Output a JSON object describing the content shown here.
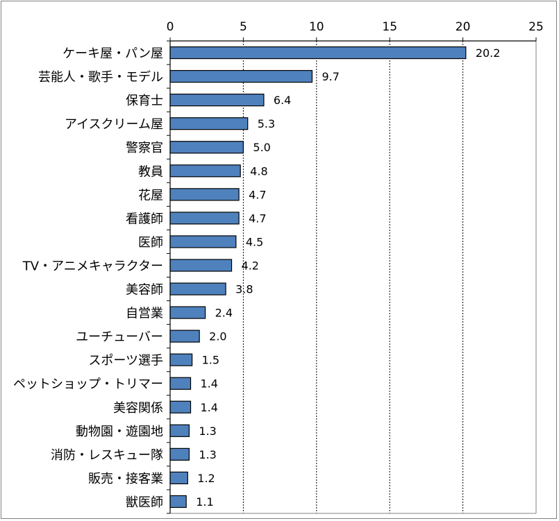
{
  "chart_data": {
    "type": "bar",
    "orientation": "horizontal",
    "categories": [
      "ケーキ屋・パン屋",
      "芸能人・歌手・モデル",
      "保育士",
      "アイスクリーム屋",
      "警察官",
      "教員",
      "花屋",
      "看護師",
      "医師",
      "TV・アニメキャラクター",
      "美容師",
      "自営業",
      "ユーチューバー",
      "スポーツ選手",
      "ペットショップ・トリマー",
      "美容関係",
      "動物園・遊園地",
      "消防・レスキュー隊",
      "販売・接客業",
      "獣医師"
    ],
    "values": [
      20.2,
      9.7,
      6.4,
      5.3,
      5.0,
      4.8,
      4.7,
      4.7,
      4.5,
      4.2,
      3.8,
      2.4,
      2.0,
      1.5,
      1.4,
      1.4,
      1.3,
      1.3,
      1.2,
      1.1
    ],
    "value_labels": [
      "20.2",
      "9.7",
      "6.4",
      "5.3",
      "5.0",
      "4.8",
      "4.7",
      "4.7",
      "4.5",
      "4.2",
      "3.8",
      "2.4",
      "2.0",
      "1.5",
      "1.4",
      "1.4",
      "1.3",
      "1.3",
      "1.2",
      "1.1"
    ],
    "xlim": [
      0,
      25
    ],
    "xticks": [
      0,
      5,
      10,
      15,
      20,
      25
    ],
    "xtick_labels": [
      "0",
      "5",
      "10",
      "15",
      "20",
      "25"
    ],
    "axis_position": "top",
    "grid": "vertical dashed",
    "legend": "none",
    "title": "",
    "xlabel": "",
    "ylabel": "",
    "colors": {
      "bar_fill": "#4f81bd",
      "bar_stroke": "#000000",
      "grid": "#000000",
      "frame": "#808080"
    }
  }
}
